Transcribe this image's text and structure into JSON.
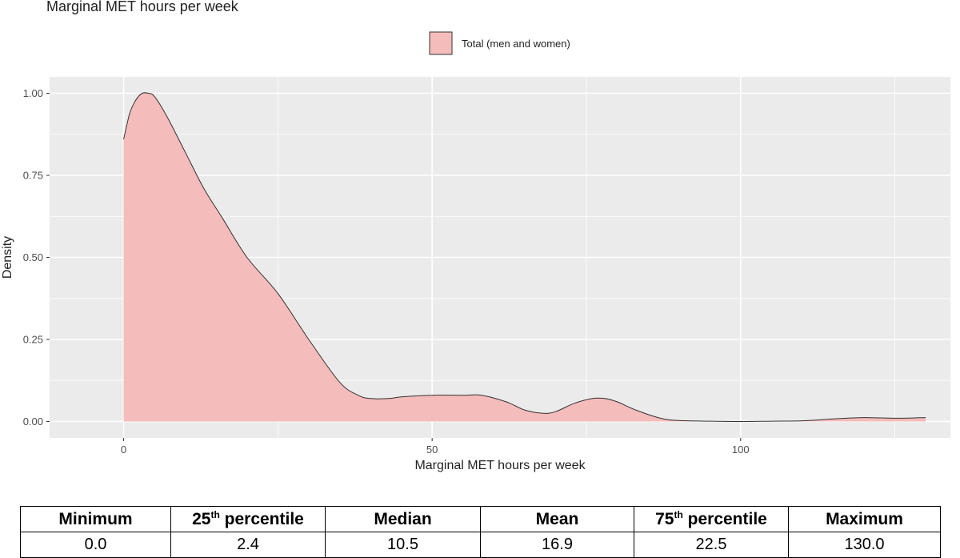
{
  "chart_data": {
    "type": "area",
    "title": "Marginal MET hours per week",
    "xlabel": "Marginal MET hours per week",
    "ylabel": "Density",
    "xlim": [
      -12,
      134
    ],
    "ylim": [
      -0.05,
      1.05
    ],
    "x_ticks": [
      0,
      50,
      100
    ],
    "x_tick_labels": [
      "0",
      "50",
      "100"
    ],
    "y_ticks": [
      0,
      0.25,
      0.5,
      0.75,
      1.0
    ],
    "y_tick_labels": [
      "0.00",
      "0.25",
      "0.50",
      "0.75",
      "1.00"
    ],
    "grid": true,
    "legend_position": "top",
    "series": [
      {
        "name": "Total (men and women)",
        "fill_color": "#f4bcbb",
        "line_color": "#333333",
        "x": [
          0,
          1,
          2,
          3,
          4,
          5,
          7,
          10,
          13,
          16,
          20,
          25,
          30,
          35,
          38,
          40,
          43,
          45,
          50,
          55,
          58,
          62,
          65,
          68,
          70,
          73,
          76,
          78,
          80,
          83,
          87,
          90,
          95,
          100,
          105,
          110,
          115,
          120,
          125,
          130
        ],
        "y": [
          0.86,
          0.94,
          0.98,
          1.0,
          1.0,
          0.99,
          0.93,
          0.82,
          0.71,
          0.62,
          0.5,
          0.39,
          0.25,
          0.12,
          0.08,
          0.07,
          0.07,
          0.075,
          0.08,
          0.08,
          0.08,
          0.06,
          0.035,
          0.025,
          0.03,
          0.055,
          0.07,
          0.07,
          0.06,
          0.035,
          0.01,
          0.003,
          0.001,
          0.0,
          0.001,
          0.002,
          0.008,
          0.012,
          0.01,
          0.012
        ]
      }
    ]
  },
  "table": {
    "headers": [
      {
        "text": "Minimum",
        "sup": ""
      },
      {
        "text": "25",
        "sup": "th",
        "rest": " percentile"
      },
      {
        "text": "Median",
        "sup": ""
      },
      {
        "text": "Mean",
        "sup": ""
      },
      {
        "text": "75",
        "sup": "th",
        "rest": " percentile"
      },
      {
        "text": "Maximum",
        "sup": ""
      }
    ],
    "values": [
      "0.0",
      "2.4",
      "10.5",
      "16.9",
      "22.5",
      "130.0"
    ]
  }
}
